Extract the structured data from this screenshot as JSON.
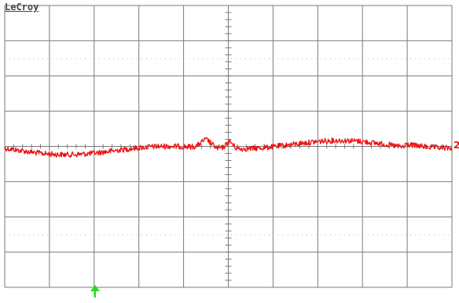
{
  "brand": "LeCroy",
  "trace": {
    "channel_marker": "2",
    "color": "#ee1111"
  },
  "trigger_marker_color": "#22dd22",
  "grid": {
    "divisions_x": 10,
    "divisions_y": 8,
    "line_color": "#7a7a7a",
    "dot_color": "#b8b8b8"
  }
}
